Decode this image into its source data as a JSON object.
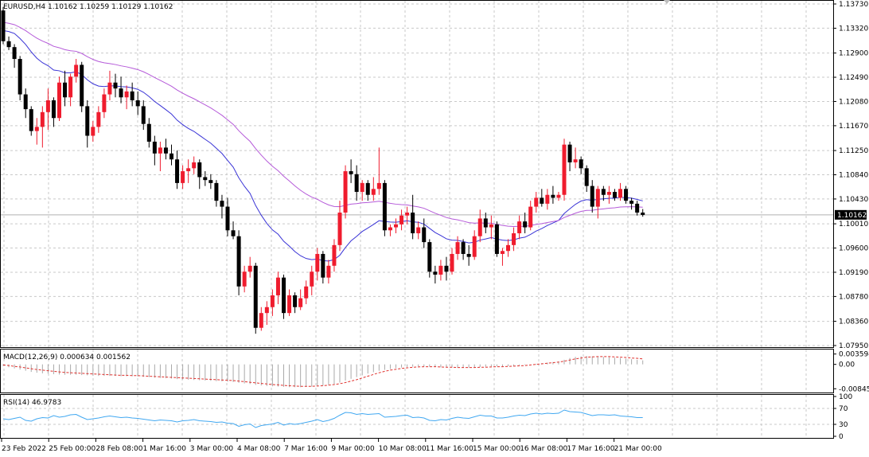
{
  "window": {
    "main_title": "EURUSD,H4  1.10162 1.10259 1.10129 1.10162",
    "price_marker": "1.10162",
    "macd_title": "MACD(12,26,9) 0.000634 0.001562",
    "rsi_title": "RSI(14) 46.9783"
  },
  "colors": {
    "bull": "#ef1c2e",
    "bear": "#000000",
    "ma_fast": "#3a34d6",
    "ma_slow": "#b55ad9",
    "signal": "#e0302c",
    "hist": "#a9a9a9",
    "rsi": "#41a8f1",
    "grid": "#c9c9c9",
    "price_marker_bg": "#000000",
    "price_marker_fg": "#ffffff"
  },
  "chart_data": [
    {
      "type": "candlestick",
      "symbol": "EURUSD",
      "timeframe": "H4",
      "ylim": [
        1.0795,
        1.1373
      ],
      "yticks": [
        1.1373,
        1.1332,
        1.129,
        1.1249,
        1.1208,
        1.1167,
        1.1125,
        1.1084,
        1.1043,
        1.1001,
        1.096,
        1.0919,
        1.0878,
        1.0836,
        1.0795
      ],
      "ytick_labels": [
        "1.13730",
        "1.13320",
        "1.12900",
        "1.12490",
        "1.12080",
        "1.11670",
        "1.11250",
        "1.10840",
        "1.10430",
        "1.10010",
        "1.09600",
        "1.09190",
        "1.08780",
        "1.08360",
        "1.07950"
      ],
      "x_labels": [
        "23 Feb 2022",
        "25 Feb 00:00",
        "28 Feb 08:00",
        "1 Mar 16:00",
        "3 Mar 00:00",
        "4 Mar 08:00",
        "7 Mar 16:00",
        "9 Mar 00:00",
        "10 Mar 08:00",
        "11 Mar 16:00",
        "15 Mar 00:00",
        "16 Mar 08:00",
        "17 Mar 16:00",
        "21 Mar 00:00"
      ],
      "current_price": 1.10162,
      "grid": true,
      "candles": [
        [
          1.1362,
          1.1368,
          1.1305,
          1.131
        ],
        [
          1.131,
          1.1318,
          1.1295,
          1.13
        ],
        [
          1.13,
          1.1305,
          1.1265,
          1.128
        ],
        [
          1.128,
          1.1285,
          1.121,
          1.122
        ],
        [
          1.122,
          1.123,
          1.118,
          1.1195
        ],
        [
          1.1195,
          1.12,
          1.115,
          1.1158
        ],
        [
          1.1158,
          1.118,
          1.1135,
          1.1165
        ],
        [
          1.1165,
          1.12,
          1.113,
          1.119
        ],
        [
          1.119,
          1.123,
          1.116,
          1.121
        ],
        [
          1.121,
          1.1215,
          1.1165,
          1.118
        ],
        [
          1.118,
          1.125,
          1.1175,
          1.124
        ],
        [
          1.124,
          1.126,
          1.12,
          1.1215
        ],
        [
          1.1215,
          1.1255,
          1.12,
          1.125
        ],
        [
          1.125,
          1.128,
          1.124,
          1.127
        ],
        [
          1.127,
          1.1275,
          1.119,
          1.12
        ],
        [
          1.12,
          1.121,
          1.113,
          1.115
        ],
        [
          1.115,
          1.1175,
          1.114,
          1.1165
        ],
        [
          1.1165,
          1.12,
          1.1155,
          1.119
        ],
        [
          1.119,
          1.123,
          1.118,
          1.122
        ],
        [
          1.122,
          1.126,
          1.121,
          1.124
        ],
        [
          1.124,
          1.1255,
          1.1215,
          1.123
        ],
        [
          1.123,
          1.125,
          1.1205,
          1.1215
        ],
        [
          1.1215,
          1.1235,
          1.1195,
          1.1225
        ],
        [
          1.1225,
          1.124,
          1.12,
          1.121
        ],
        [
          1.121,
          1.1225,
          1.1185,
          1.12
        ],
        [
          1.12,
          1.121,
          1.116,
          1.117
        ],
        [
          1.117,
          1.118,
          1.113,
          1.114
        ],
        [
          1.114,
          1.115,
          1.11,
          1.112
        ],
        [
          1.112,
          1.114,
          1.109,
          1.113
        ],
        [
          1.113,
          1.1145,
          1.111,
          1.112
        ],
        [
          1.112,
          1.1135,
          1.11,
          1.111
        ],
        [
          1.111,
          1.1125,
          1.106,
          1.107
        ],
        [
          1.107,
          1.11,
          1.106,
          1.109
        ],
        [
          1.109,
          1.111,
          1.107,
          1.1095
        ],
        [
          1.1095,
          1.1115,
          1.1085,
          1.1105
        ],
        [
          1.1105,
          1.111,
          1.106,
          1.108
        ],
        [
          1.108,
          1.109,
          1.1065,
          1.1075
        ],
        [
          1.1075,
          1.1085,
          1.106,
          1.107
        ],
        [
          1.107,
          1.1075,
          1.103,
          1.104
        ],
        [
          1.104,
          1.105,
          1.101,
          1.103
        ],
        [
          1.103,
          1.1045,
          1.098,
          1.099
        ],
        [
          1.099,
          1.1005,
          1.0975,
          1.098
        ],
        [
          1.098,
          1.099,
          1.088,
          1.0895
        ],
        [
          1.0895,
          1.093,
          1.0885,
          1.092
        ],
        [
          1.092,
          1.0945,
          1.091,
          1.093
        ],
        [
          1.093,
          1.0935,
          1.0815,
          1.0825
        ],
        [
          1.0825,
          1.086,
          1.082,
          1.085
        ],
        [
          1.085,
          1.087,
          1.083,
          1.086
        ],
        [
          1.086,
          1.089,
          1.0845,
          1.088
        ],
        [
          1.088,
          1.092,
          1.0865,
          1.091
        ],
        [
          1.091,
          1.0915,
          1.084,
          1.085
        ],
        [
          1.085,
          1.089,
          1.0845,
          1.088
        ],
        [
          1.088,
          1.0885,
          1.085,
          1.086
        ],
        [
          1.086,
          1.089,
          1.0855,
          1.0875
        ],
        [
          1.0875,
          1.0905,
          1.0865,
          1.0895
        ],
        [
          1.0895,
          1.093,
          1.088,
          1.092
        ],
        [
          1.092,
          1.096,
          1.0905,
          1.095
        ],
        [
          1.095,
          1.0955,
          1.09,
          1.091
        ],
        [
          1.091,
          1.094,
          1.09,
          1.093
        ],
        [
          1.093,
          1.0975,
          1.092,
          1.0965
        ],
        [
          1.0965,
          1.104,
          1.0955,
          1.102
        ],
        [
          1.102,
          1.11,
          1.101,
          1.109
        ],
        [
          1.109,
          1.111,
          1.107,
          1.1085
        ],
        [
          1.1085,
          1.11,
          1.104,
          1.1055
        ],
        [
          1.1055,
          1.1075,
          1.104,
          1.107
        ],
        [
          1.107,
          1.1075,
          1.104,
          1.105
        ],
        [
          1.105,
          1.108,
          1.104,
          1.106
        ],
        [
          1.106,
          1.113,
          1.105,
          1.107
        ],
        [
          1.107,
          1.1075,
          1.098,
          1.099
        ],
        [
          1.099,
          1.1,
          1.098,
          1.0995
        ],
        [
          1.0995,
          1.101,
          1.0985,
          1.1
        ],
        [
          1.1,
          1.1025,
          1.099,
          1.1015
        ],
        [
          1.1015,
          1.103,
          1.1,
          1.102
        ],
        [
          1.102,
          1.105,
          1.0975,
          1.0985
        ],
        [
          1.0985,
          1.1005,
          1.0975,
          1.0995
        ],
        [
          1.0995,
          1.101,
          1.096,
          1.097
        ],
        [
          1.097,
          1.0975,
          1.091,
          1.092
        ],
        [
          1.092,
          1.093,
          1.09,
          1.0915
        ],
        [
          1.0915,
          1.094,
          1.0905,
          1.093
        ],
        [
          1.093,
          1.0945,
          1.0905,
          1.092
        ],
        [
          1.092,
          1.096,
          1.0915,
          1.095
        ],
        [
          1.095,
          1.098,
          1.094,
          1.097
        ],
        [
          1.097,
          1.0975,
          1.094,
          1.095
        ],
        [
          1.095,
          1.0965,
          1.093,
          1.0945
        ],
        [
          1.0945,
          1.099,
          1.094,
          1.098
        ],
        [
          1.098,
          1.1025,
          1.097,
          1.101
        ],
        [
          1.101,
          1.102,
          1.0985,
          1.0995
        ],
        [
          1.0995,
          1.1015,
          1.0975,
          1.1
        ],
        [
          1.1,
          1.1005,
          1.0945,
          1.095
        ],
        [
          1.095,
          1.096,
          1.093,
          1.0955
        ],
        [
          1.0955,
          1.0975,
          1.0945,
          1.0965
        ],
        [
          1.0965,
          1.0995,
          1.0955,
          1.0985
        ],
        [
          1.0985,
          1.1015,
          1.0975,
          1.1005
        ],
        [
          1.1005,
          1.102,
          1.0985,
          1.0995
        ],
        [
          1.0995,
          1.104,
          1.099,
          1.103
        ],
        [
          1.103,
          1.1055,
          1.102,
          1.1045
        ],
        [
          1.1045,
          1.106,
          1.103,
          1.1035
        ],
        [
          1.1035,
          1.106,
          1.1025,
          1.105
        ],
        [
          1.105,
          1.1065,
          1.1035,
          1.1045
        ],
        [
          1.1045,
          1.1055,
          1.104,
          1.105
        ],
        [
          1.105,
          1.1145,
          1.104,
          1.1135
        ],
        [
          1.1135,
          1.114,
          1.109,
          1.1105
        ],
        [
          1.1105,
          1.113,
          1.1095,
          1.111
        ],
        [
          1.111,
          1.1115,
          1.1085,
          1.1095
        ],
        [
          1.1095,
          1.11,
          1.1055,
          1.1065
        ],
        [
          1.1065,
          1.1075,
          1.102,
          1.103
        ],
        [
          1.103,
          1.1065,
          1.101,
          1.106
        ],
        [
          1.106,
          1.1065,
          1.104,
          1.105
        ],
        [
          1.105,
          1.1065,
          1.1035,
          1.1055
        ],
        [
          1.1055,
          1.106,
          1.104,
          1.1045
        ],
        [
          1.1045,
          1.107,
          1.104,
          1.106
        ],
        [
          1.106,
          1.1065,
          1.1035,
          1.104
        ],
        [
          1.104,
          1.1045,
          1.1025,
          1.1035
        ],
        [
          1.1035,
          1.104,
          1.1015,
          1.102
        ],
        [
          1.102,
          1.1026,
          1.1013,
          1.1016
        ]
      ]
    },
    {
      "type": "line",
      "name": "MACD(12,26,9)",
      "values_text": "0.000634 0.001562",
      "ylim": [
        -0.0092,
        0.0046
      ],
      "yticks": [
        0.003594,
        0.0,
        -0.008451
      ],
      "ytick_labels": [
        "0.003594",
        "0.00",
        "-0.008451"
      ],
      "histogram": [
        -0.0005,
        -0.001,
        -0.0014,
        -0.0018,
        -0.0022,
        -0.0026,
        -0.0029,
        -0.0031,
        -0.0032,
        -0.0034,
        -0.0035,
        -0.0036,
        -0.0036,
        -0.0036,
        -0.0037,
        -0.0038,
        -0.0039,
        -0.004,
        -0.004,
        -0.004,
        -0.004,
        -0.0041,
        -0.0041,
        -0.0041,
        -0.0042,
        -0.0043,
        -0.0044,
        -0.0046,
        -0.0047,
        -0.0048,
        -0.0049,
        -0.0051,
        -0.0052,
        -0.0053,
        -0.0054,
        -0.0055,
        -0.0056,
        -0.0057,
        -0.0058,
        -0.0059,
        -0.006,
        -0.0061,
        -0.0064,
        -0.0066,
        -0.0068,
        -0.0071,
        -0.0073,
        -0.0075,
        -0.0076,
        -0.0077,
        -0.0078,
        -0.0079,
        -0.0079,
        -0.0079,
        -0.0078,
        -0.0077,
        -0.0075,
        -0.0073,
        -0.0071,
        -0.0068,
        -0.0063,
        -0.0056,
        -0.005,
        -0.0044,
        -0.0038,
        -0.0032,
        -0.0027,
        -0.0022,
        -0.0019,
        -0.0016,
        -0.0013,
        -0.0011,
        -0.0009,
        -0.0008,
        -0.0007,
        -0.0007,
        -0.0008,
        -0.0009,
        -0.001,
        -0.0011,
        -0.0011,
        -0.0011,
        -0.0011,
        -0.0011,
        -0.001,
        -0.0009,
        -0.0008,
        -0.0007,
        -0.0007,
        -0.0007,
        -0.0006,
        -0.0005,
        -0.0003,
        -0.0002,
        0.0,
        0.0002,
        0.0004,
        0.0006,
        0.0008,
        0.001,
        0.0016,
        0.0022,
        0.0026,
        0.0028,
        0.0029,
        0.0028,
        0.0027,
        0.0026,
        0.0025,
        0.0023,
        0.0022,
        0.002,
        0.0018,
        0.0016,
        0.0014
      ],
      "signal": [
        -0.0002,
        -0.0004,
        -0.0007,
        -0.0009,
        -0.0012,
        -0.0015,
        -0.0018,
        -0.002,
        -0.0022,
        -0.0024,
        -0.0026,
        -0.0028,
        -0.0029,
        -0.003,
        -0.0031,
        -0.0032,
        -0.0033,
        -0.0034,
        -0.0035,
        -0.0036,
        -0.0037,
        -0.0038,
        -0.0038,
        -0.0039,
        -0.0039,
        -0.004,
        -0.0041,
        -0.0042,
        -0.0043,
        -0.0044,
        -0.0045,
        -0.0046,
        -0.0047,
        -0.0048,
        -0.0049,
        -0.005,
        -0.0051,
        -0.0052,
        -0.0053,
        -0.0054,
        -0.0055,
        -0.0056,
        -0.0058,
        -0.006,
        -0.0062,
        -0.0064,
        -0.0066,
        -0.0068,
        -0.007,
        -0.0071,
        -0.0073,
        -0.0074,
        -0.0075,
        -0.0076,
        -0.0076,
        -0.0076,
        -0.0075,
        -0.0074,
        -0.0072,
        -0.007,
        -0.0067,
        -0.0063,
        -0.0058,
        -0.0053,
        -0.0047,
        -0.0041,
        -0.0035,
        -0.0029,
        -0.0024,
        -0.002,
        -0.0017,
        -0.0014,
        -0.0012,
        -0.001,
        -0.0009,
        -0.0008,
        -0.0008,
        -0.0008,
        -0.0009,
        -0.001,
        -0.001,
        -0.0011,
        -0.0011,
        -0.0011,
        -0.0011,
        -0.001,
        -0.001,
        -0.0009,
        -0.0008,
        -0.0008,
        -0.0007,
        -0.0006,
        -0.0005,
        -0.0004,
        -0.0002,
        0.0,
        0.0002,
        0.0004,
        0.0006,
        0.0008,
        0.0011,
        0.0015,
        0.0019,
        0.0022,
        0.0025,
        0.0026,
        0.0027,
        0.0027,
        0.0027,
        0.0026,
        0.0025,
        0.0024,
        0.0022,
        0.0021,
        0.0019
      ]
    },
    {
      "type": "line",
      "name": "RSI(14)",
      "values_text": "46.9783",
      "ylim": [
        0,
        100
      ],
      "yticks": [
        100,
        70,
        30,
        0
      ],
      "ytick_labels": [
        "100",
        "70",
        "30",
        "0"
      ],
      "values": [
        44,
        42,
        45,
        48,
        40,
        38,
        44,
        47,
        46,
        52,
        48,
        50,
        54,
        55,
        48,
        42,
        44,
        46,
        49,
        51,
        49,
        47,
        48,
        46,
        45,
        43,
        41,
        39,
        41,
        40,
        39,
        36,
        39,
        40,
        42,
        39,
        38,
        37,
        35,
        36,
        33,
        32,
        25,
        29,
        31,
        22,
        27,
        29,
        31,
        35,
        28,
        32,
        30,
        32,
        35,
        38,
        42,
        37,
        40,
        45,
        53,
        60,
        59,
        55,
        57,
        55,
        56,
        57,
        48,
        49,
        50,
        52,
        53,
        47,
        48,
        46,
        40,
        39,
        42,
        41,
        45,
        48,
        46,
        45,
        49,
        53,
        51,
        51,
        46,
        46,
        48,
        51,
        53,
        52,
        56,
        58,
        56,
        58,
        57,
        58,
        66,
        62,
        61,
        60,
        56,
        52,
        54,
        54,
        53,
        54,
        51,
        50,
        49,
        47,
        47
      ]
    }
  ]
}
